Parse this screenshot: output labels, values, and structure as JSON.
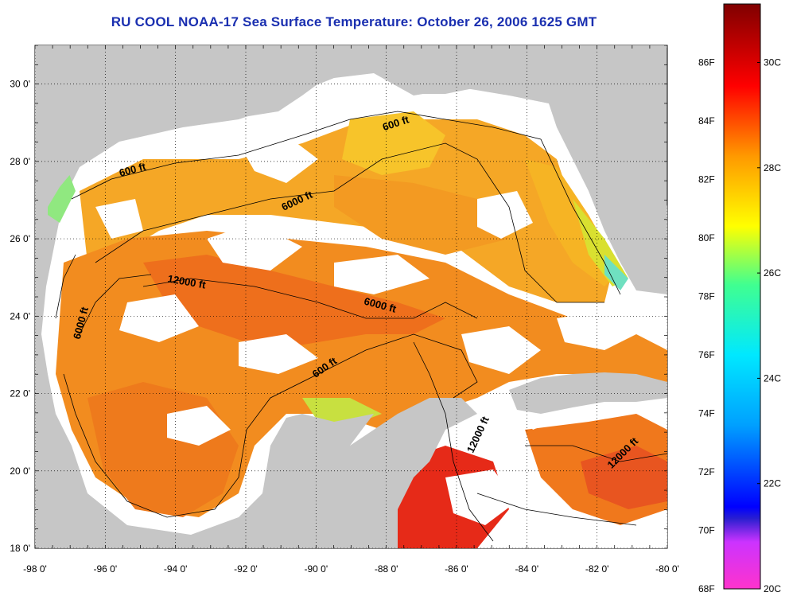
{
  "title": "RU COOL  NOAA-17  Sea Surface Temperature:  October 26, 2006 1625 GMT",
  "map": {
    "lat_ticks": [
      "30 0'",
      "28 0'",
      "26 0'",
      "24 0'",
      "22 0'",
      "20 0'",
      "18 0'"
    ],
    "lon_ticks": [
      "-98 0'",
      "-96 0'",
      "-94 0'",
      "-92 0'",
      "-90 0'",
      "-88 0'",
      "-86 0'",
      "-84 0'",
      "-82 0'",
      "-80 0'"
    ],
    "lat_range": [
      18,
      31
    ],
    "lon_range": [
      -98,
      -80
    ],
    "contour_labels": [
      {
        "text": "600 ft",
        "lon": -87.7,
        "lat": 28.9,
        "rot": -18
      },
      {
        "text": "600 ft",
        "lon": -95.2,
        "lat": 27.7,
        "rot": -15
      },
      {
        "text": "6000 ft",
        "lon": -90.5,
        "lat": 26.9,
        "rot": -25
      },
      {
        "text": "12000 ft",
        "lon": -93.7,
        "lat": 24.8,
        "rot": 10
      },
      {
        "text": "6000 ft",
        "lon": -88.2,
        "lat": 24.2,
        "rot": 15
      },
      {
        "text": "6000 ft",
        "lon": -96.6,
        "lat": 23.8,
        "rot": -75
      },
      {
        "text": "600 ft",
        "lon": -89.7,
        "lat": 22.6,
        "rot": -35
      },
      {
        "text": "12000 ft",
        "lon": -85.3,
        "lat": 20.9,
        "rot": -65
      },
      {
        "text": "12000 ft",
        "lon": -81.2,
        "lat": 20.4,
        "rot": -45
      }
    ],
    "colors": {
      "land": "#c6c6c6",
      "cloud": "#ffffff",
      "ocean_warm": "#f28a1e",
      "ocean_hot": "#e42a1a",
      "ocean_cool": "#f4c020"
    }
  },
  "colorbar": {
    "f_labels": [
      "86F",
      "84F",
      "82F",
      "80F",
      "78F",
      "76F",
      "74F",
      "72F",
      "70F",
      "68F"
    ],
    "c_labels": [
      "30C",
      "28C",
      "26C",
      "24C",
      "22C",
      "20C"
    ]
  }
}
